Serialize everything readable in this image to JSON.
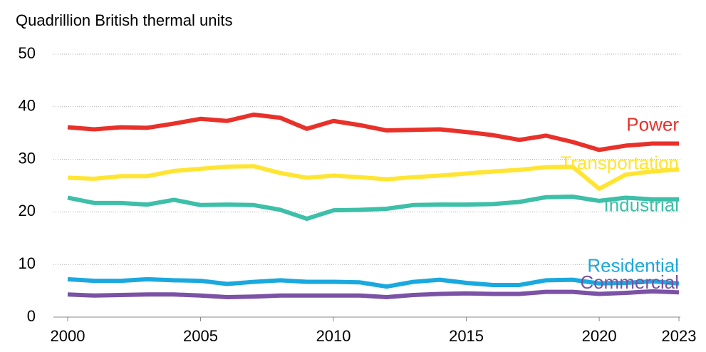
{
  "chart_data": {
    "type": "line",
    "title": "Quadrillion British thermal units",
    "x": [
      2000,
      2001,
      2002,
      2003,
      2004,
      2005,
      2006,
      2007,
      2008,
      2009,
      2010,
      2011,
      2012,
      2013,
      2014,
      2015,
      2016,
      2017,
      2018,
      2019,
      2020,
      2021,
      2022,
      2023
    ],
    "series": [
      {
        "name": "Power",
        "color": "#e8312a",
        "values": [
          36.1,
          35.7,
          36.1,
          36.0,
          36.8,
          37.7,
          37.3,
          38.5,
          37.9,
          35.8,
          37.3,
          36.5,
          35.5,
          35.6,
          35.7,
          35.2,
          34.6,
          33.7,
          34.5,
          33.3,
          31.8,
          32.6,
          33.0,
          33.0
        ]
      },
      {
        "name": "Transportation",
        "color": "#ffe533",
        "values": [
          26.5,
          26.3,
          26.8,
          26.8,
          27.8,
          28.2,
          28.6,
          28.7,
          27.4,
          26.5,
          26.9,
          26.6,
          26.2,
          26.6,
          26.9,
          27.3,
          27.7,
          28.0,
          28.5,
          28.6,
          24.4,
          27.1,
          27.7,
          28.1
        ]
      },
      {
        "name": "Industrial",
        "color": "#3dbfa8",
        "values": [
          22.7,
          21.7,
          21.7,
          21.4,
          22.3,
          21.3,
          21.4,
          21.3,
          20.4,
          18.7,
          20.3,
          20.4,
          20.6,
          21.3,
          21.4,
          21.4,
          21.5,
          21.9,
          22.8,
          22.9,
          22.1,
          22.7,
          22.4,
          22.4
        ]
      },
      {
        "name": "Residential",
        "color": "#1aa9df",
        "values": [
          7.2,
          6.9,
          6.9,
          7.2,
          7.0,
          6.9,
          6.3,
          6.7,
          7.0,
          6.7,
          6.7,
          6.6,
          5.8,
          6.7,
          7.1,
          6.5,
          6.1,
          6.1,
          7.0,
          7.1,
          6.4,
          6.5,
          6.8,
          6.4
        ]
      },
      {
        "name": "Commercial",
        "color": "#7b52a5",
        "values": [
          4.3,
          4.1,
          4.2,
          4.3,
          4.3,
          4.1,
          3.8,
          3.9,
          4.1,
          4.1,
          4.1,
          4.1,
          3.8,
          4.2,
          4.4,
          4.5,
          4.4,
          4.4,
          4.8,
          4.8,
          4.4,
          4.6,
          4.9,
          4.7
        ]
      }
    ],
    "xlim": [
      2000,
      2023
    ],
    "xticks": [
      2000,
      2005,
      2010,
      2015,
      2020,
      2023
    ],
    "ylim": [
      0,
      50
    ],
    "yticks": [
      0,
      10,
      20,
      30,
      40,
      50
    ],
    "grid": true
  }
}
